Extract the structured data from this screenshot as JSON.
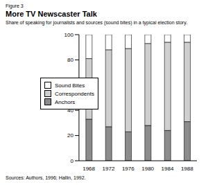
{
  "chart_data": {
    "type": "bar",
    "title": "More TV Newscaster Talk",
    "subtitle": "Share of speaking for journalists and sources (sound bites) in a typical election story.",
    "annotations": [
      "Figure 3",
      "Sources: Authors, 1996; Hallin, 1992."
    ],
    "categories": [
      "1968",
      "1972",
      "1976",
      "1980",
      "1984",
      "1988"
    ],
    "series": [
      {
        "name": "Anchors",
        "color": "#8c8c8c",
        "values": [
          33,
          27,
          23,
          28,
          24,
          31
        ]
      },
      {
        "name": "Correspondents",
        "color": "#cfcfcf",
        "values": [
          48,
          61,
          66,
          65,
          70,
          63
        ]
      },
      {
        "name": "Sound Bites",
        "color": "#ffffff",
        "values": [
          19,
          12,
          11,
          7,
          6,
          6
        ]
      }
    ],
    "stacked": true,
    "ylim": [
      0,
      100
    ],
    "yticks": [
      0,
      20,
      40,
      60,
      80,
      100
    ],
    "grid": false,
    "legend": "left"
  }
}
